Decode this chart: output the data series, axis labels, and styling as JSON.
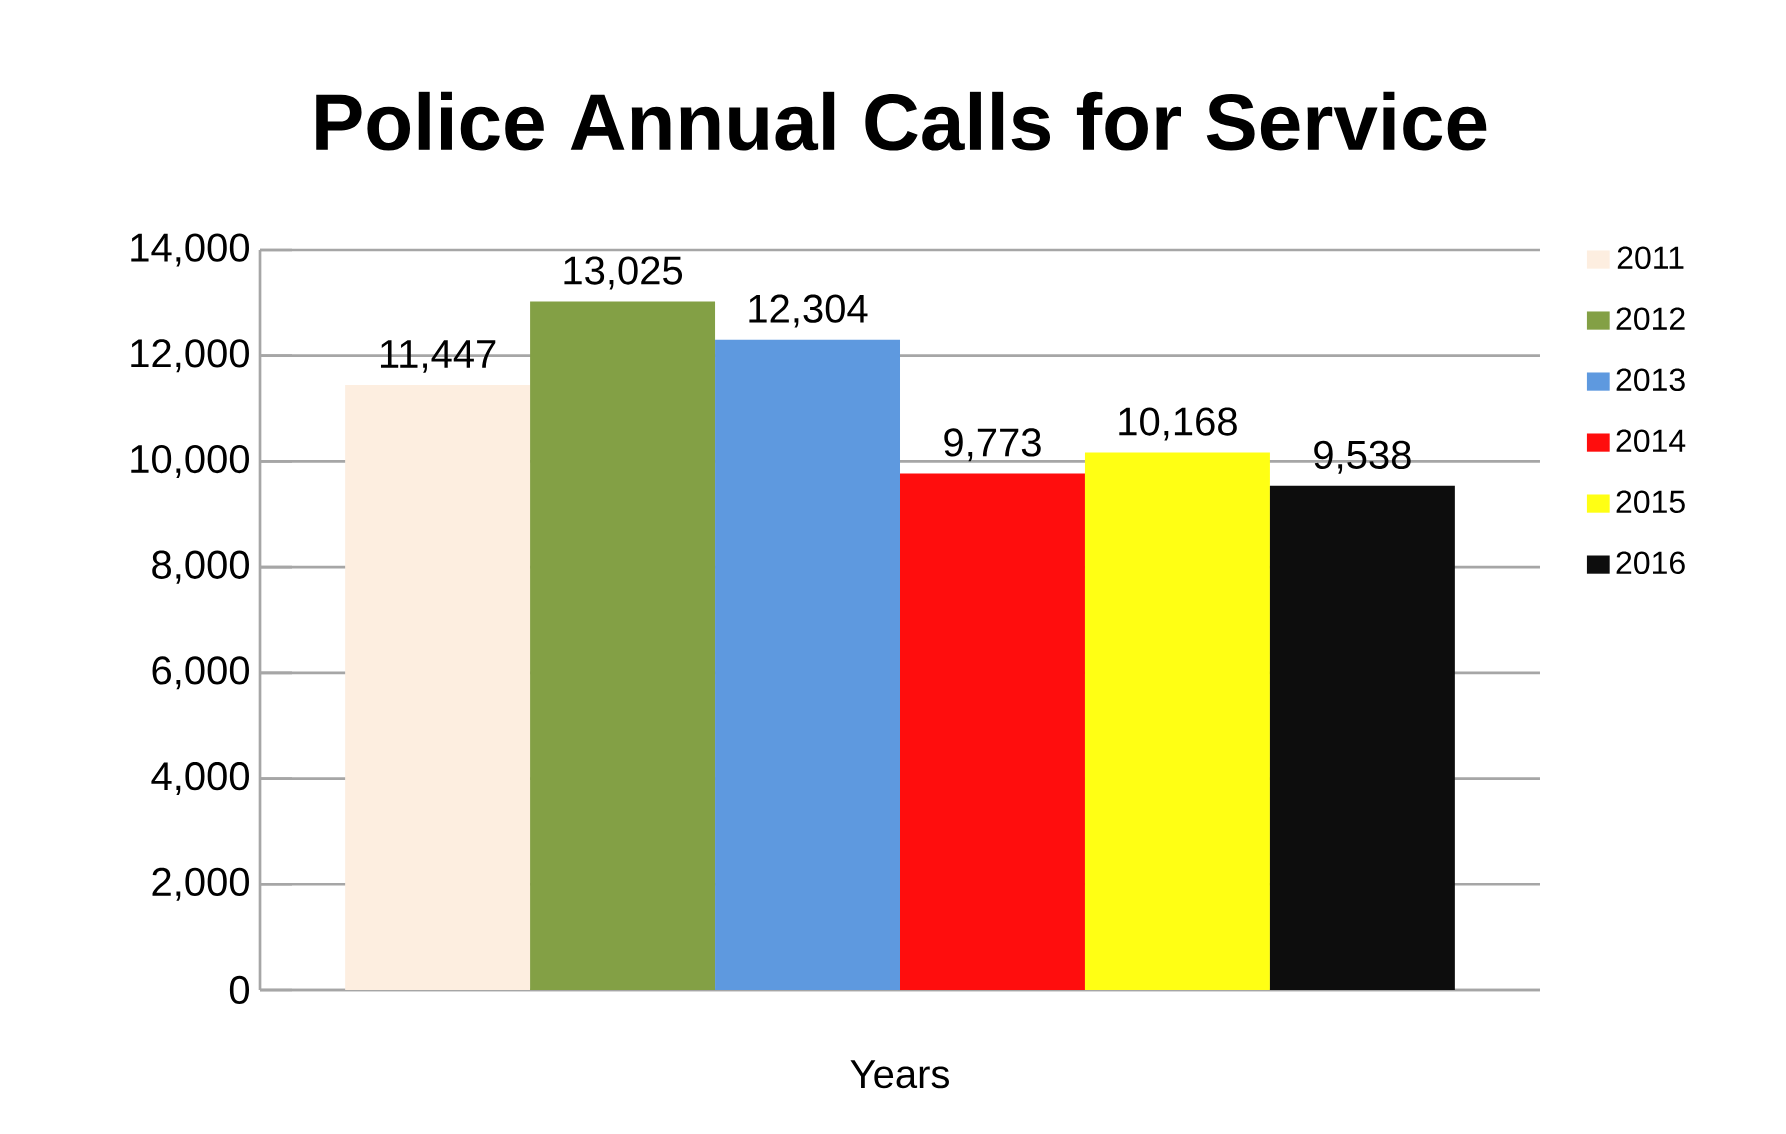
{
  "chart_data": {
    "type": "bar",
    "title": "Police Annual Calls for Service",
    "xlabel": "Years",
    "categories": [
      null
    ],
    "series": [
      {
        "name": "2011",
        "color": "#fdeee0",
        "values": [
          11447
        ],
        "value_labels": [
          "11,447"
        ]
      },
      {
        "name": "2012",
        "color": "#83a045",
        "values": [
          13025
        ],
        "value_labels": [
          "13,025"
        ]
      },
      {
        "name": "2013",
        "color": "#5e99df",
        "values": [
          12304
        ],
        "value_labels": [
          "12,304"
        ]
      },
      {
        "name": "2014",
        "color": "#ff0d0d",
        "values": [
          9773
        ],
        "value_labels": [
          "9,773"
        ]
      },
      {
        "name": "2015",
        "color": "#ffff14",
        "values": [
          10168
        ],
        "value_labels": [
          "10,168"
        ]
      },
      {
        "name": "2016",
        "color": "#0d0d0d",
        "values": [
          9538
        ],
        "value_labels": [
          "9,538"
        ]
      }
    ],
    "ylim": [
      0,
      14000
    ],
    "yticks": [
      0,
      {
        "value": 2000,
        "label": "2,000"
      },
      {
        "value": 4000,
        "label": "4,000"
      },
      {
        "value": 6000,
        "label": "6,000"
      },
      {
        "value": 8000,
        "label": "8,000"
      },
      {
        "value": 10000,
        "label": "10,000"
      },
      {
        "value": 12000,
        "label": "12,000"
      },
      {
        "value": 14000,
        "label": "14,000"
      }
    ],
    "grid": "y",
    "legend": "right",
    "tick_labels": "y"
  }
}
